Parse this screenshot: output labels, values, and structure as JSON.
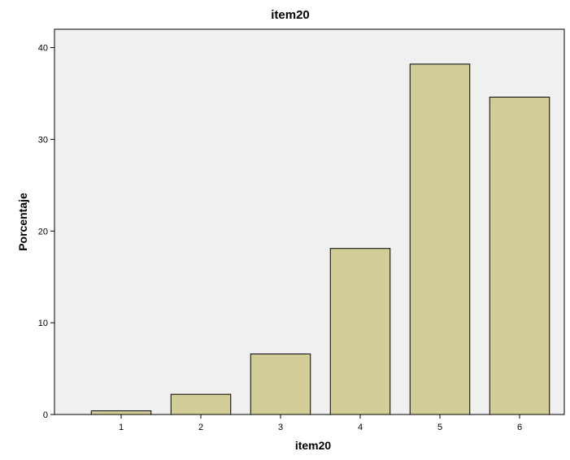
{
  "chart_data": {
    "type": "bar",
    "title": "item20",
    "xlabel": "item20",
    "ylabel": "Porcentaje",
    "categories": [
      "1",
      "2",
      "3",
      "4",
      "5",
      "6"
    ],
    "values": [
      0.4,
      2.2,
      6.6,
      18.1,
      38.2,
      34.6
    ],
    "ylim": [
      0,
      42
    ],
    "yticks": [
      0,
      10,
      20,
      30,
      40
    ],
    "grid": false,
    "legend": "none",
    "colors": {
      "bar_fill": "#d3ce97",
      "bar_stroke": "#000000",
      "plot_background": "#f0f0f0",
      "page_background": "#ffffff"
    }
  }
}
